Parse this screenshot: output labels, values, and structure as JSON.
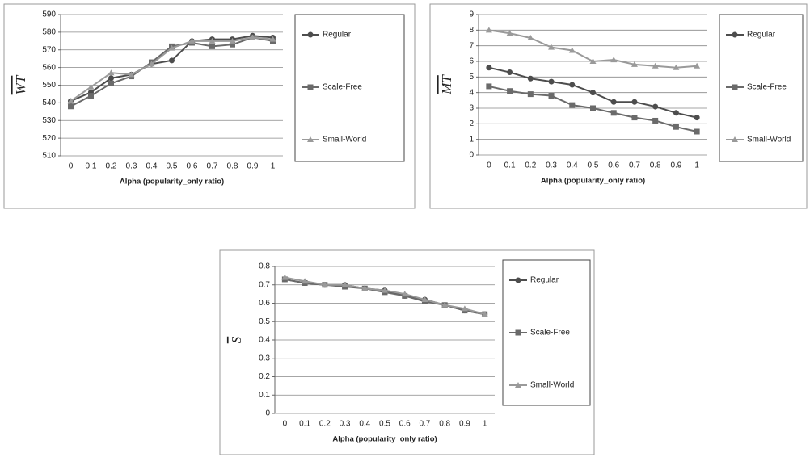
{
  "chart_data": [
    {
      "type": "line",
      "ylabel": "WT",
      "xlabel": "Alpha (popularity_only ratio)",
      "categories": [
        "0",
        "0.1",
        "0.2",
        "0.3",
        "0.4",
        "0.5",
        "0.6",
        "0.7",
        "0.8",
        "0.9",
        "1"
      ],
      "ylim": [
        510,
        590
      ],
      "yticks": [
        510,
        520,
        530,
        540,
        550,
        560,
        570,
        580,
        590
      ],
      "grid": true,
      "series": [
        {
          "name": "Regular",
          "color": "#4d4d4d",
          "marker": "circle",
          "values": [
            541,
            546,
            554,
            556,
            562,
            564,
            575,
            576,
            576,
            578,
            577
          ]
        },
        {
          "name": "Scale-Free",
          "color": "#6a6a6a",
          "marker": "square",
          "values": [
            538,
            544,
            551,
            555,
            563,
            572,
            574,
            572,
            573,
            577,
            575
          ]
        },
        {
          "name": "Small-World",
          "color": "#9a9a9a",
          "marker": "triangle",
          "values": [
            541,
            549,
            557,
            556,
            562,
            571,
            575,
            575,
            575,
            577,
            576
          ]
        }
      ]
    },
    {
      "type": "line",
      "ylabel": "MT",
      "xlabel": "Alpha (popularity_only ratio)",
      "categories": [
        "0",
        "0.1",
        "0.2",
        "0.3",
        "0.4",
        "0.5",
        "0.6",
        "0.7",
        "0.8",
        "0.9",
        "1"
      ],
      "ylim": [
        0,
        9
      ],
      "yticks": [
        0,
        1,
        2,
        3,
        4,
        5,
        6,
        7,
        8,
        9
      ],
      "grid": true,
      "series": [
        {
          "name": "Regular",
          "color": "#4d4d4d",
          "marker": "circle",
          "values": [
            5.6,
            5.3,
            4.9,
            4.7,
            4.5,
            4.0,
            3.4,
            3.4,
            3.1,
            2.7,
            2.4
          ]
        },
        {
          "name": "Scale-Free",
          "color": "#6a6a6a",
          "marker": "square",
          "values": [
            4.4,
            4.1,
            3.9,
            3.8,
            3.2,
            3.0,
            2.7,
            2.4,
            2.2,
            1.8,
            1.5
          ]
        },
        {
          "name": "Small-World",
          "color": "#9a9a9a",
          "marker": "triangle",
          "values": [
            8.0,
            7.8,
            7.5,
            6.9,
            6.7,
            6.0,
            6.1,
            5.8,
            5.7,
            5.6,
            5.7
          ]
        }
      ]
    },
    {
      "type": "line",
      "ylabel": "S",
      "xlabel": "Alpha (popularity_only ratio)",
      "categories": [
        "0",
        "0.1",
        "0.2",
        "0.3",
        "0.4",
        "0.5",
        "0.6",
        "0.7",
        "0.8",
        "0.9",
        "1"
      ],
      "ylim": [
        0,
        0.8
      ],
      "yticks": [
        0,
        0.1,
        0.2,
        0.3,
        0.4,
        0.5,
        0.6,
        0.7,
        0.8
      ],
      "grid": true,
      "series": [
        {
          "name": "Regular",
          "color": "#4d4d4d",
          "marker": "circle",
          "values": [
            0.73,
            0.71,
            0.7,
            0.7,
            0.68,
            0.67,
            0.64,
            0.62,
            0.59,
            0.56,
            0.54
          ]
        },
        {
          "name": "Scale-Free",
          "color": "#6a6a6a",
          "marker": "square",
          "values": [
            0.73,
            0.71,
            0.7,
            0.69,
            0.68,
            0.66,
            0.64,
            0.61,
            0.59,
            0.56,
            0.54
          ]
        },
        {
          "name": "Small-World",
          "color": "#9a9a9a",
          "marker": "triangle",
          "values": [
            0.74,
            0.72,
            0.7,
            0.7,
            0.68,
            0.67,
            0.65,
            0.62,
            0.59,
            0.57,
            0.54
          ]
        }
      ]
    }
  ]
}
